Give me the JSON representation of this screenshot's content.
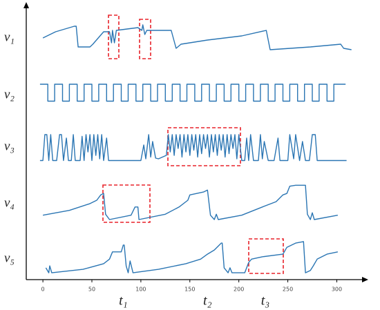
{
  "chart_data": {
    "type": "line",
    "xlim": [
      -17,
      330
    ],
    "xticks": [
      0,
      50,
      100,
      150,
      200,
      250,
      300
    ],
    "annotations": [
      {
        "text": "t₁",
        "x": 82
      },
      {
        "text": "t₂",
        "x": 168
      },
      {
        "text": "t₃",
        "x": 227
      }
    ],
    "series": [
      {
        "name": "v₁",
        "color": "#2a75b3",
        "x": [
          0,
          13,
          32,
          34,
          36,
          48,
          51,
          62,
          68,
          70,
          71,
          73,
          75,
          97,
          101,
          102,
          104,
          106,
          131,
          136,
          141,
          168,
          203,
          228,
          232,
          273,
          304,
          307,
          315
        ],
        "values": [
          50,
          68,
          84,
          84,
          24,
          24,
          32,
          68,
          68,
          36,
          72,
          36,
          72,
          80,
          72,
          88,
          60,
          72,
          72,
          20,
          32,
          44,
          56,
          72,
          16,
          24,
          32,
          20,
          16
        ]
      },
      {
        "name": "v₂",
        "color": "#2a75b3",
        "x": [
          -3,
          5,
          5,
          12,
          12,
          20,
          20,
          27,
          27,
          35,
          35,
          42,
          42,
          50,
          50,
          57,
          57,
          65,
          65,
          72,
          72,
          80,
          80,
          87,
          87,
          95,
          95,
          102,
          102,
          110,
          110,
          117,
          117,
          125,
          125,
          132,
          132,
          140,
          140,
          147,
          147,
          155,
          155,
          162,
          162,
          170,
          170,
          177,
          177,
          185,
          185,
          192,
          192,
          200,
          200,
          207,
          207,
          215,
          215,
          222,
          222,
          230,
          230,
          237,
          237,
          245,
          245,
          252,
          252,
          260,
          260,
          267,
          267,
          275,
          275,
          282,
          282,
          290,
          290,
          297,
          297,
          309
        ],
        "values": [
          80,
          80,
          10,
          10,
          80,
          80,
          10,
          10,
          80,
          80,
          10,
          10,
          80,
          80,
          10,
          10,
          80,
          80,
          10,
          10,
          80,
          80,
          10,
          10,
          80,
          80,
          10,
          10,
          80,
          80,
          10,
          10,
          80,
          80,
          10,
          10,
          80,
          80,
          10,
          10,
          80,
          80,
          10,
          10,
          80,
          80,
          10,
          10,
          80,
          80,
          10,
          10,
          80,
          80,
          10,
          10,
          80,
          80,
          10,
          10,
          80,
          80,
          10,
          10,
          80,
          80,
          10,
          10,
          80,
          80,
          10,
          10,
          80,
          80,
          10,
          10,
          80,
          80,
          10,
          10,
          80,
          80
        ]
      },
      {
        "name": "v₃",
        "color": "#2a75b3",
        "x": [
          -3,
          0,
          2,
          4,
          6,
          8,
          10,
          14,
          17,
          19,
          21,
          24,
          26,
          29,
          31,
          33,
          38,
          40,
          42,
          44,
          46,
          48,
          50,
          52,
          54,
          56,
          58,
          60,
          62,
          65,
          67,
          100,
          103,
          105,
          108,
          110,
          112,
          115,
          118,
          122,
          126,
          128,
          130,
          132,
          134,
          136,
          138,
          140,
          142,
          144,
          146,
          148,
          150,
          152,
          154,
          156,
          158,
          160,
          162,
          164,
          166,
          168,
          170,
          172,
          174,
          176,
          178,
          180,
          182,
          184,
          186,
          188,
          190,
          192,
          194,
          196,
          198,
          200,
          203,
          206,
          208,
          210,
          212,
          215,
          220,
          222,
          224,
          226,
          230,
          236,
          240,
          242,
          250,
          252,
          256,
          258,
          262,
          265,
          268,
          272,
          275,
          278,
          280,
          310
        ],
        "values": [
          5,
          5,
          80,
          80,
          5,
          80,
          5,
          5,
          80,
          80,
          5,
          70,
          5,
          5,
          80,
          5,
          5,
          75,
          5,
          80,
          30,
          80,
          5,
          80,
          20,
          80,
          10,
          80,
          5,
          70,
          5,
          5,
          50,
          10,
          80,
          15,
          60,
          12,
          10,
          15,
          20,
          80,
          30,
          80,
          20,
          80,
          40,
          80,
          15,
          80,
          30,
          80,
          20,
          80,
          35,
          80,
          15,
          80,
          25,
          80,
          40,
          80,
          15,
          80,
          30,
          80,
          20,
          80,
          35,
          80,
          15,
          80,
          25,
          80,
          40,
          80,
          10,
          80,
          5,
          5,
          70,
          5,
          80,
          5,
          5,
          80,
          10,
          60,
          5,
          5,
          70,
          5,
          5,
          80,
          10,
          80,
          5,
          60,
          5,
          5,
          80,
          80,
          5,
          5
        ]
      },
      {
        "name": "v₄",
        "color": "#2a75b3",
        "x": [
          0,
          27,
          48,
          55,
          59,
          62,
          64,
          68,
          90,
          94,
          97,
          98,
          125,
          139,
          148,
          150,
          164,
          168,
          171,
          175,
          177,
          179,
          203,
          224,
          238,
          245,
          249,
          252,
          258,
          268,
          270,
          273,
          275,
          277,
          301
        ],
        "values": [
          19,
          29,
          43,
          50,
          61,
          64,
          21,
          10,
          19,
          36,
          36,
          10,
          21,
          36,
          50,
          61,
          67,
          71,
          19,
          10,
          21,
          10,
          19,
          36,
          47,
          61,
          64,
          79,
          81,
          81,
          21,
          10,
          24,
          10,
          19
        ]
      },
      {
        "name": "v₅",
        "color": "#2a75b3",
        "x": [
          3,
          6,
          7,
          9,
          41,
          62,
          68,
          71,
          80,
          82,
          83,
          85,
          87,
          89,
          92,
          118,
          146,
          161,
          168,
          175,
          182,
          183,
          185,
          189,
          191,
          193,
          206,
          210,
          213,
          224,
          245,
          249,
          258,
          266,
          268,
          273,
          276,
          280,
          290,
          301
        ],
        "values": [
          22,
          9,
          27,
          9,
          18,
          33,
          45,
          64,
          64,
          82,
          82,
          27,
          9,
          40,
          9,
          18,
          33,
          45,
          58,
          69,
          87,
          87,
          22,
          9,
          22,
          9,
          9,
          36,
          45,
          51,
          58,
          76,
          87,
          91,
          9,
          15,
          27,
          45,
          58,
          64
        ]
      }
    ]
  }
}
